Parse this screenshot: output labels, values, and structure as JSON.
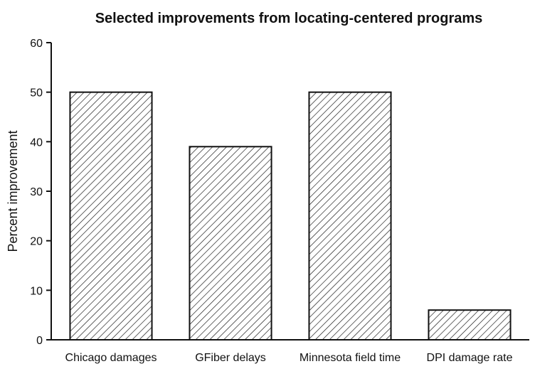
{
  "chart_data": {
    "type": "bar",
    "title": "Selected improvements from locating-centered programs",
    "ylabel": "Percent improvement",
    "xlabel": "",
    "categories": [
      "Chicago damages",
      "GFiber delays",
      "Minnesota field time",
      "DPI damage rate"
    ],
    "values": [
      50,
      39,
      50,
      6
    ],
    "ylim": [
      0,
      60
    ],
    "yticks": [
      0,
      10,
      20,
      30,
      40,
      50,
      60
    ],
    "grid": false,
    "legend": "none",
    "bar_pattern": "diagonal-hatch",
    "bar_color": "#111111"
  }
}
